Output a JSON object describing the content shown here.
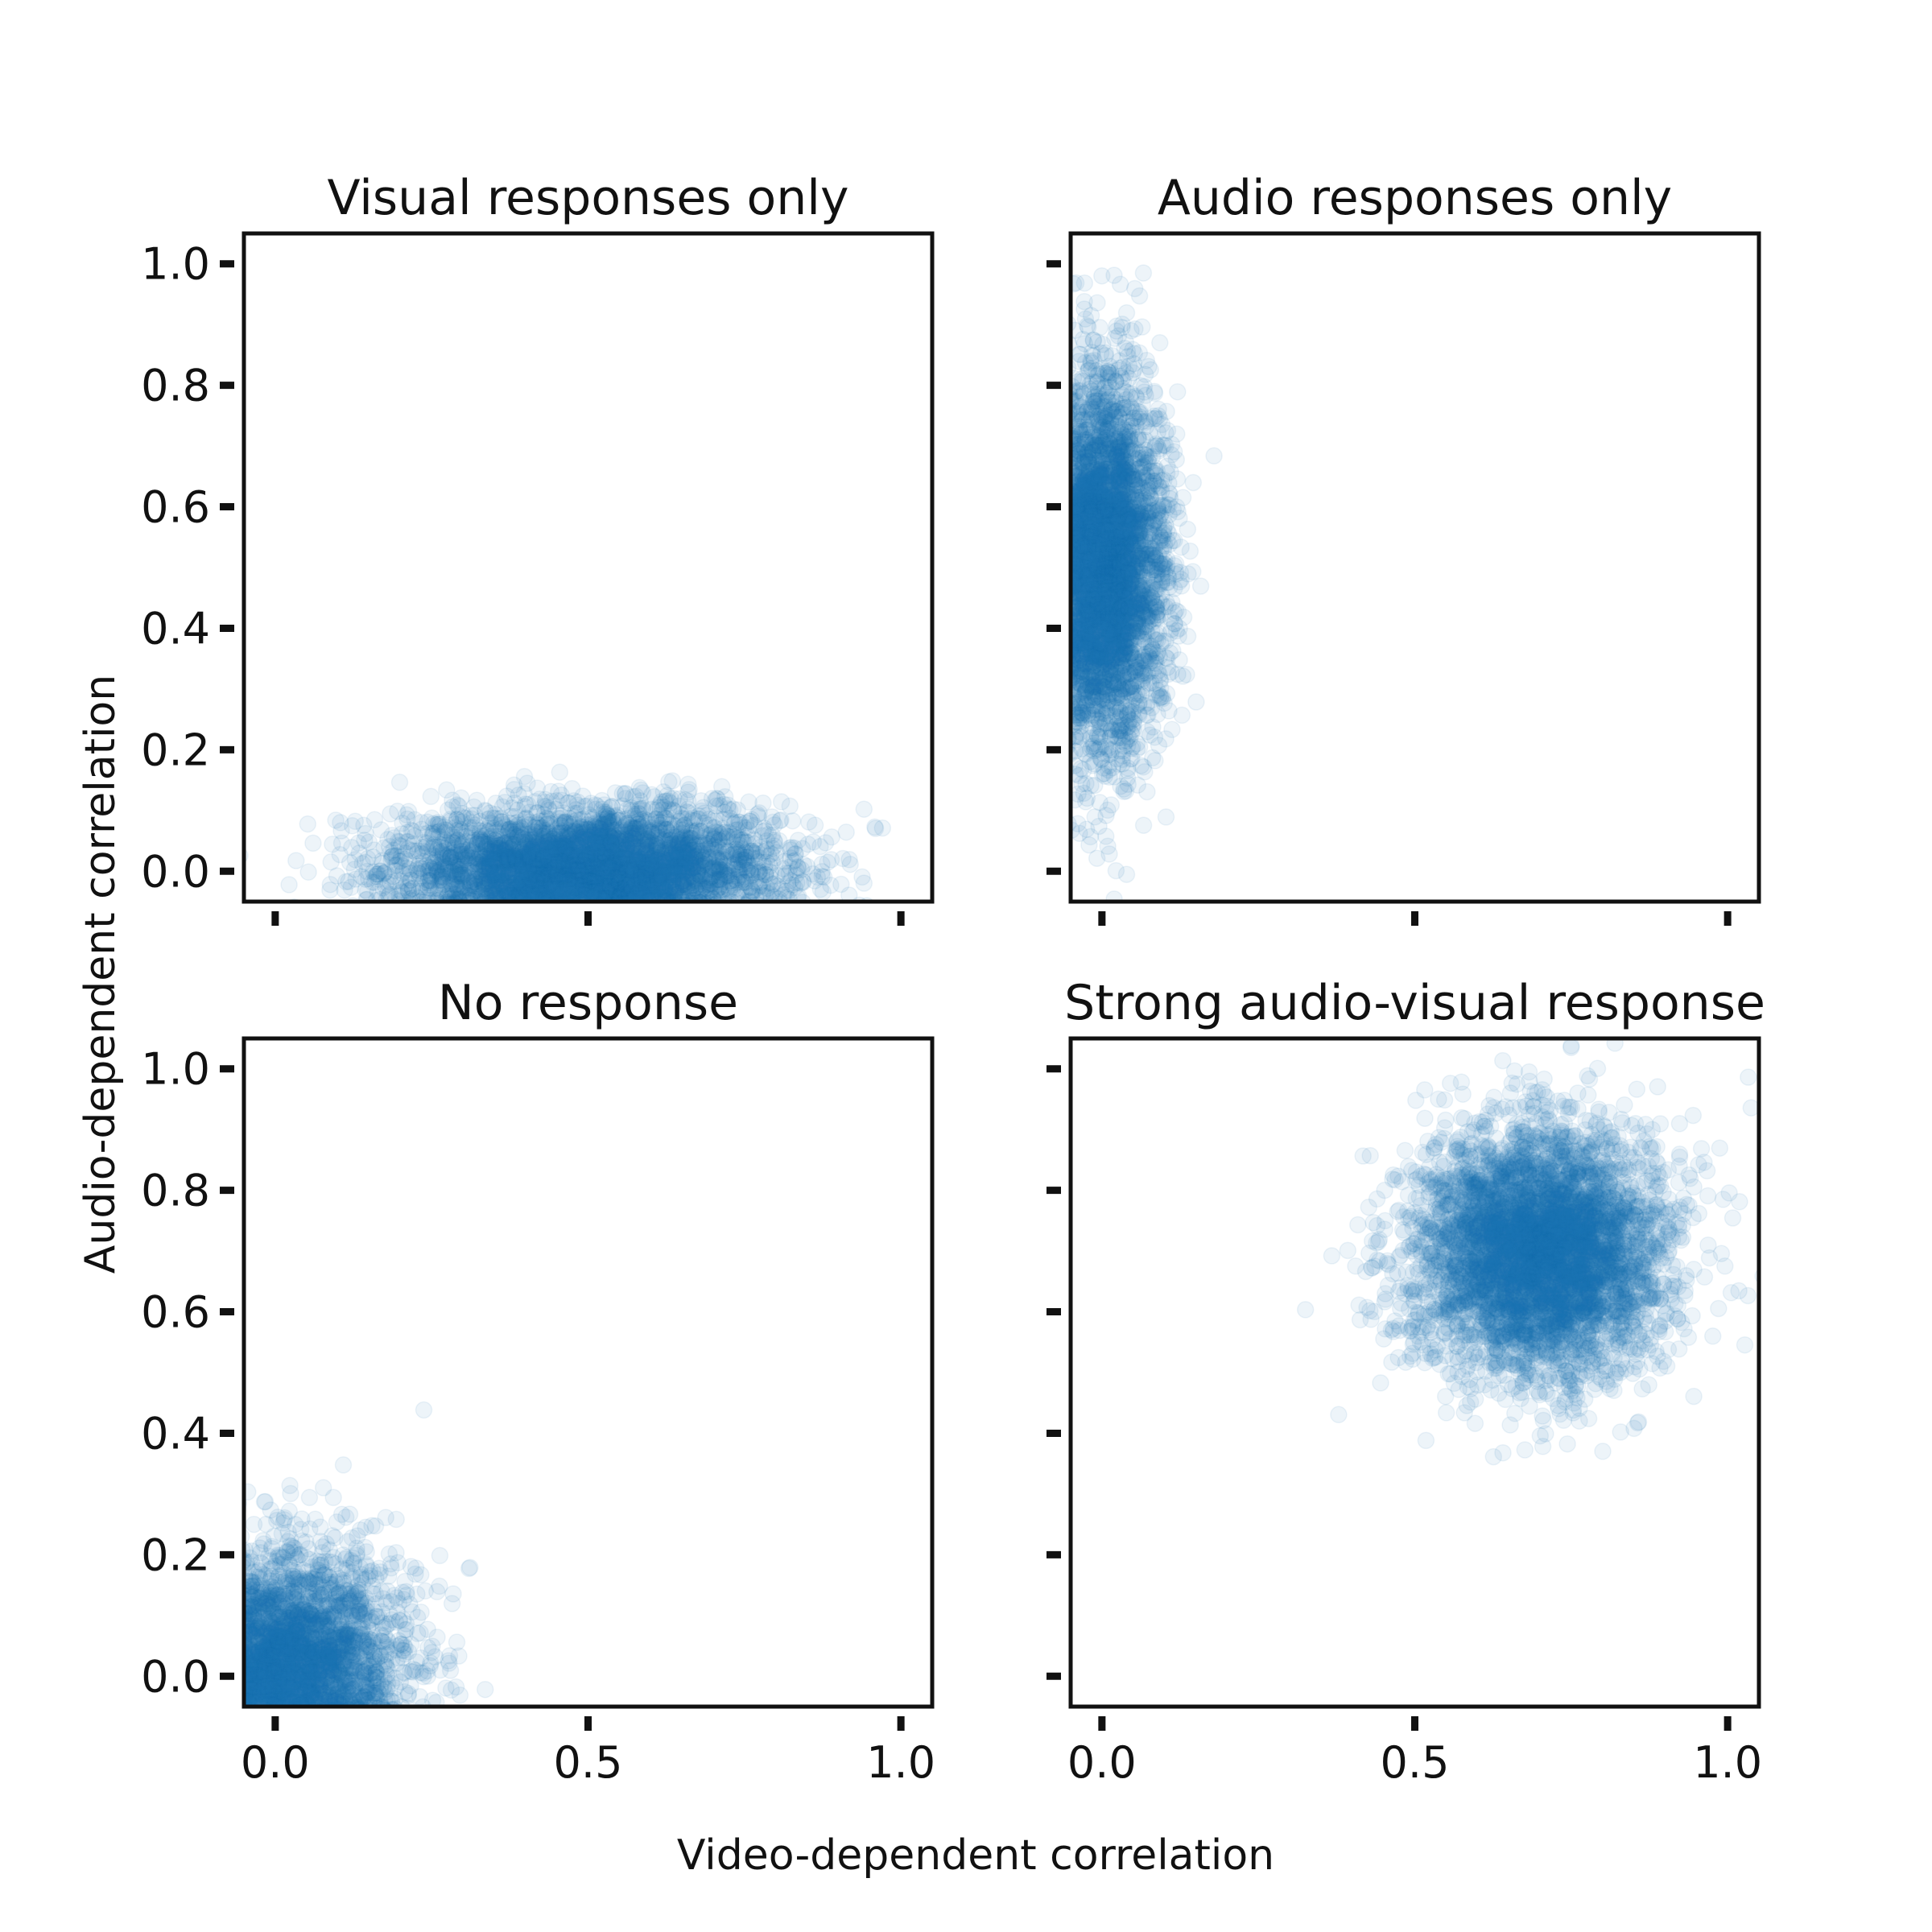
{
  "figure": {
    "xlabel": "Video-dependent correlation",
    "ylabel": "Audio-dependent correlation",
    "point_color": "#1f77b4",
    "point_alpha": 0.08
  },
  "chart_data": [
    {
      "type": "scatter",
      "title": "Visual responses only",
      "xlim": [
        -0.05,
        1.05
      ],
      "ylim": [
        -0.05,
        1.05
      ],
      "xticks": [
        "0.0",
        "0.5",
        "1.0"
      ],
      "yticks": [
        "0.0",
        "0.2",
        "0.4",
        "0.6",
        "0.8",
        "1.0"
      ],
      "show_xtick_labels": false,
      "show_ytick_labels": true,
      "grid": false,
      "cloud": {
        "center_x": 0.5,
        "center_y": 0.0,
        "std_x": 0.15,
        "std_y": 0.05,
        "n": 5000
      }
    },
    {
      "type": "scatter",
      "title": "Audio responses only",
      "xlim": [
        -0.05,
        1.05
      ],
      "ylim": [
        -0.05,
        1.05
      ],
      "xticks": [
        "0.0",
        "0.5",
        "1.0"
      ],
      "yticks": [
        "0.0",
        "0.2",
        "0.4",
        "0.6",
        "0.8",
        "1.0"
      ],
      "show_xtick_labels": false,
      "show_ytick_labels": false,
      "grid": false,
      "cloud": {
        "center_x": 0.0,
        "center_y": 0.5,
        "std_x": 0.05,
        "std_y": 0.15,
        "n": 5000
      }
    },
    {
      "type": "scatter",
      "title": "No response",
      "xlim": [
        -0.05,
        1.05
      ],
      "ylim": [
        -0.05,
        1.05
      ],
      "xticks": [
        "0.0",
        "0.5",
        "1.0"
      ],
      "yticks": [
        "0.0",
        "0.2",
        "0.4",
        "0.6",
        "0.8",
        "1.0"
      ],
      "show_xtick_labels": true,
      "show_ytick_labels": true,
      "grid": false,
      "cloud": {
        "center_x": 0.0,
        "center_y": 0.0,
        "std_x": 0.1,
        "std_y": 0.1,
        "n": 5000
      }
    },
    {
      "type": "scatter",
      "title": "Strong audio-visual response",
      "xlim": [
        -0.05,
        1.05
      ],
      "ylim": [
        -0.05,
        1.05
      ],
      "xticks": [
        "0.0",
        "0.5",
        "1.0"
      ],
      "yticks": [
        "0.0",
        "0.2",
        "0.4",
        "0.6",
        "0.8",
        "1.0"
      ],
      "show_xtick_labels": true,
      "show_ytick_labels": false,
      "grid": false,
      "cloud": {
        "center_x": 0.7,
        "center_y": 0.7,
        "std_x": 0.1,
        "std_y": 0.1,
        "n": 5000
      }
    }
  ]
}
